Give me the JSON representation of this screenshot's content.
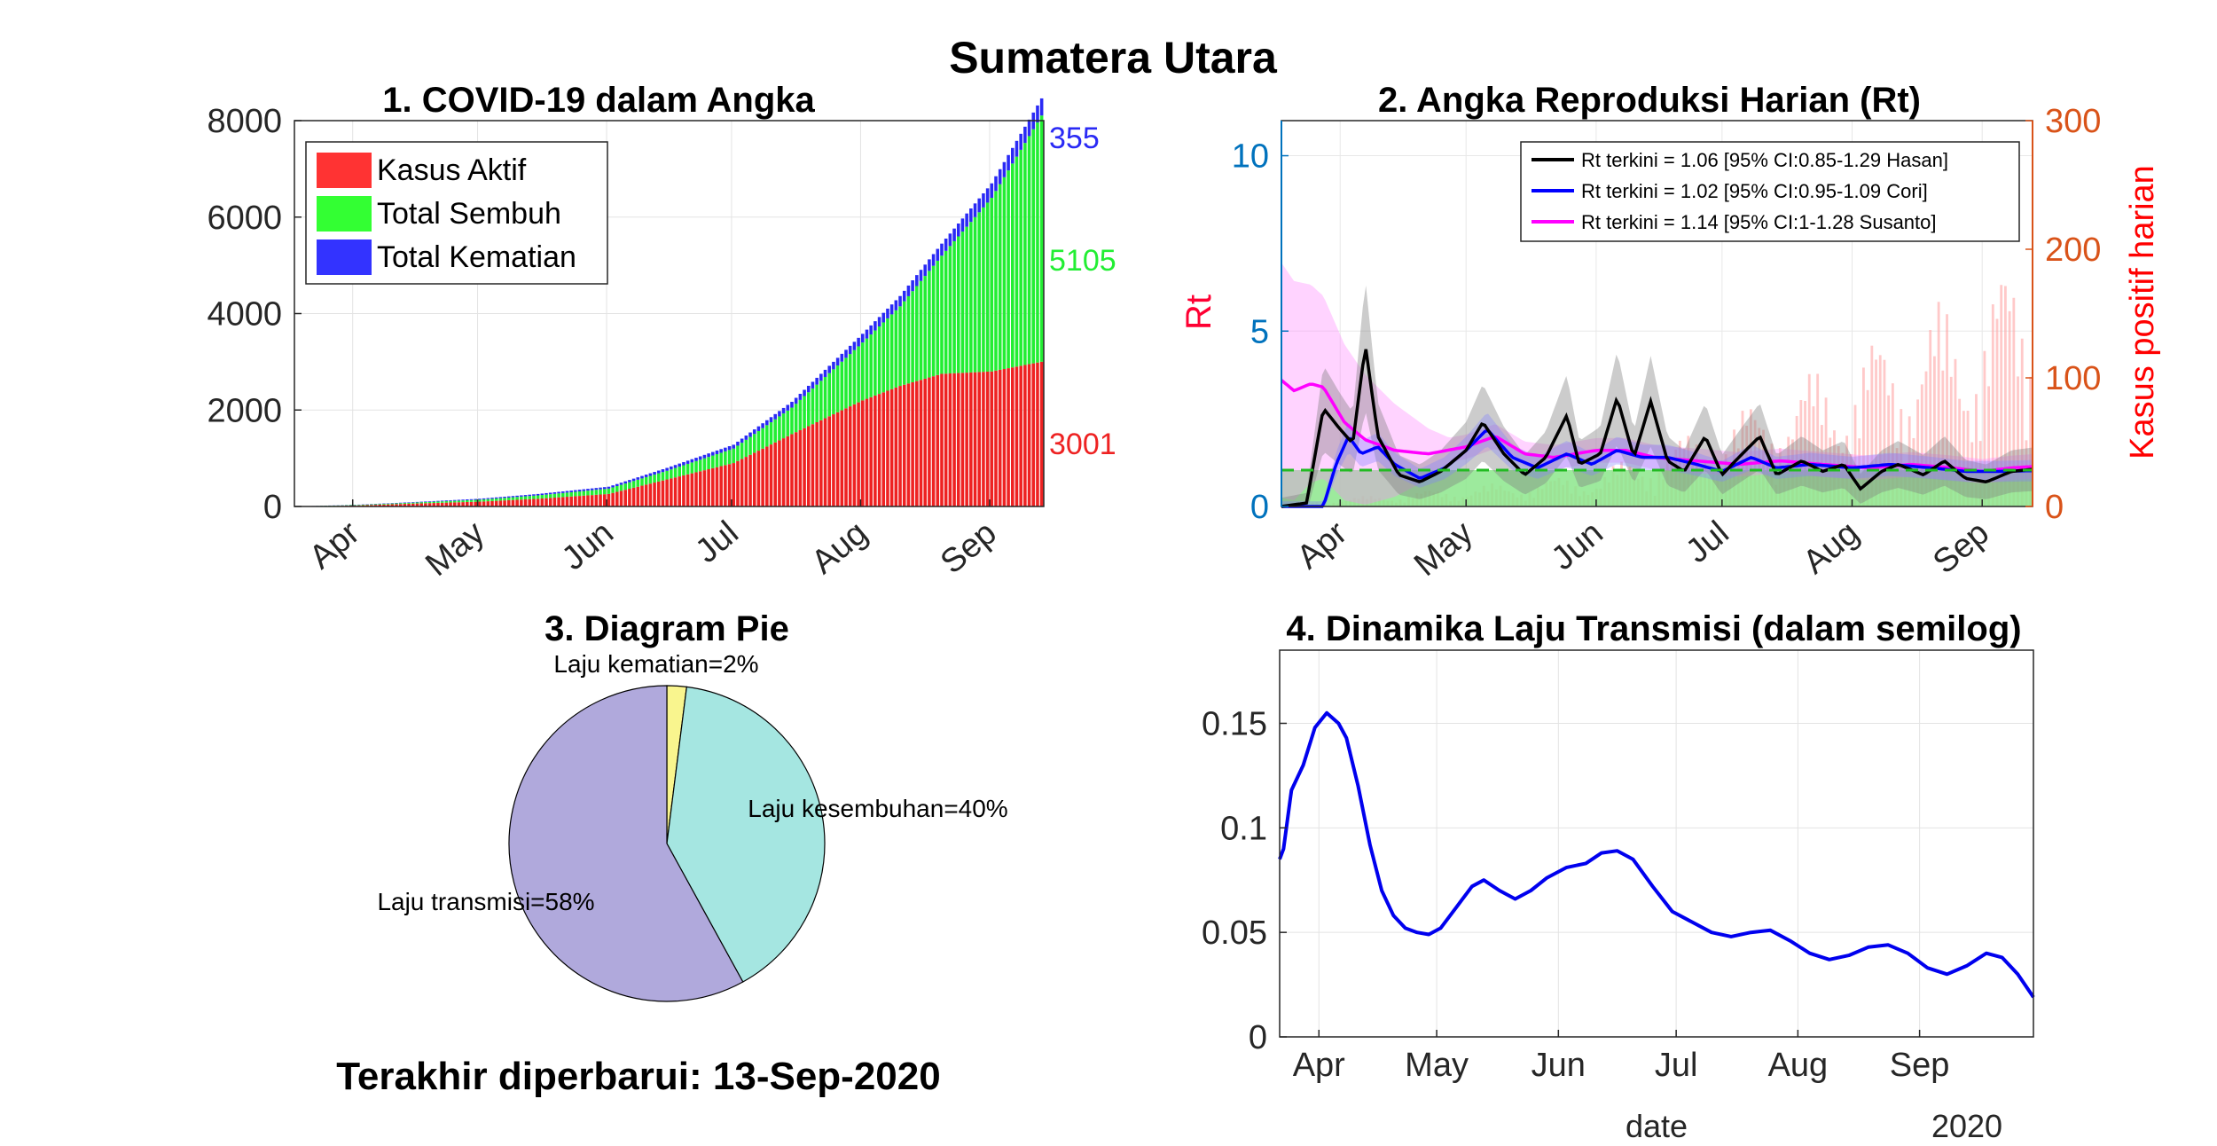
{
  "page": {
    "title": "Sumatera Utara",
    "updated": "Terakhir diperbarui: 13-Sep-2020"
  },
  "colors": {
    "active": "#ee2222",
    "recovered": "#22ee33",
    "deaths": "#2a2af5",
    "rt_hasan": "#000000",
    "rt_cori": "#0000ff",
    "rt_susanto": "#ff00ff",
    "daily_cases": "#ff9c9c",
    "threshold": "#22bb22",
    "transmission": "#0000ee",
    "pie_transmission": "#b0a9dc",
    "pie_recovery": "#a5e6e1",
    "pie_death": "#f9f58e",
    "left_axis_blue": "#0072bd",
    "right_axis_orange": "#d95319",
    "rt_label": "#ff0033",
    "cases_label": "#ff0000"
  },
  "chart_data": [
    {
      "type": "bar",
      "stacked": true,
      "title": "1. COVID-19 dalam Angka",
      "x_start": "2020-03-18",
      "x_end": "2020-09-13",
      "x_ticks": [
        "Apr",
        "May",
        "Jun",
        "Jul",
        "Aug",
        "Sep"
      ],
      "ylim": [
        0,
        8000
      ],
      "y_ticks": [
        "0",
        "2000",
        "4000",
        "6000",
        "8000"
      ],
      "legend": [
        "Kasus Aktif",
        "Total Sembuh",
        "Total Kematian"
      ],
      "legend_position": "top-left",
      "grid": true,
      "end_labels": {
        "deaths": "355",
        "recovered": "5105",
        "active": "3001"
      },
      "series": [
        {
          "name": "Kasus Aktif",
          "key": "active",
          "anchors": [
            [
              "2020-03-18",
              0
            ],
            [
              "2020-04-01",
              20
            ],
            [
              "2020-04-15",
              60
            ],
            [
              "2020-05-01",
              100
            ],
            [
              "2020-05-15",
              160
            ],
            [
              "2020-06-01",
              260
            ],
            [
              "2020-06-15",
              560
            ],
            [
              "2020-07-01",
              900
            ],
            [
              "2020-07-15",
              1500
            ],
            [
              "2020-08-01",
              2200
            ],
            [
              "2020-08-10",
              2500
            ],
            [
              "2020-08-20",
              2750
            ],
            [
              "2020-09-01",
              2800
            ],
            [
              "2020-09-13",
              3001
            ]
          ]
        },
        {
          "name": "Total Sembuh",
          "key": "recovered",
          "anchors": [
            [
              "2020-03-18",
              0
            ],
            [
              "2020-04-15",
              20
            ],
            [
              "2020-05-01",
              40
            ],
            [
              "2020-05-15",
              70
            ],
            [
              "2020-06-01",
              110
            ],
            [
              "2020-06-15",
              180
            ],
            [
              "2020-07-01",
              300
            ],
            [
              "2020-07-15",
              550
            ],
            [
              "2020-08-01",
              1200
            ],
            [
              "2020-08-10",
              1650
            ],
            [
              "2020-08-20",
              2450
            ],
            [
              "2020-09-01",
              3600
            ],
            [
              "2020-09-13",
              5105
            ]
          ]
        },
        {
          "name": "Total Kematian",
          "key": "deaths",
          "anchors": [
            [
              "2020-03-18",
              0
            ],
            [
              "2020-04-15",
              10
            ],
            [
              "2020-05-01",
              20
            ],
            [
              "2020-06-01",
              40
            ],
            [
              "2020-06-15",
              60
            ],
            [
              "2020-07-01",
              80
            ],
            [
              "2020-07-15",
              120
            ],
            [
              "2020-08-01",
              180
            ],
            [
              "2020-08-20",
              250
            ],
            [
              "2020-09-01",
              300
            ],
            [
              "2020-09-13",
              355
            ]
          ]
        }
      ]
    },
    {
      "type": "line",
      "title": "2. Angka Reproduksi Harian (Rt)",
      "x_start": "2020-03-18",
      "x_end": "2020-09-13",
      "x_ticks": [
        "Apr",
        "May",
        "Jun",
        "Jul",
        "Aug",
        "Sep"
      ],
      "ylabel": "Rt",
      "ylim": [
        0,
        11
      ],
      "y_ticks": [
        "0",
        "5",
        "10"
      ],
      "ylabel_right": "Kasus positif harian",
      "ylim_right": [
        0,
        300
      ],
      "y_ticks_right": [
        "0",
        "100",
        "200",
        "300"
      ],
      "threshold": 1,
      "legend_position": "top-right",
      "legend": [
        "Rt terkini = 1.06 [95% CI:0.85-1.29 Hasan]",
        "Rt terkini = 1.02 [95% CI:0.95-1.09 Cori]",
        "Rt terkini = 1.14 [95% CI:1-1.28 Susanto]"
      ],
      "series": [
        {
          "name": "Hasan",
          "key": "rt_hasan",
          "anchors": [
            [
              "2020-03-18",
              0.0
            ],
            [
              "2020-03-24",
              0.1
            ],
            [
              "2020-03-28",
              2.8
            ],
            [
              "2020-04-01",
              2.2
            ],
            [
              "2020-04-04",
              1.8
            ],
            [
              "2020-04-07",
              4.6
            ],
            [
              "2020-04-10",
              2.0
            ],
            [
              "2020-04-15",
              0.9
            ],
            [
              "2020-04-20",
              0.7
            ],
            [
              "2020-04-25",
              1.0
            ],
            [
              "2020-05-01",
              1.6
            ],
            [
              "2020-05-05",
              2.4
            ],
            [
              "2020-05-10",
              1.5
            ],
            [
              "2020-05-15",
              0.9
            ],
            [
              "2020-05-20",
              1.4
            ],
            [
              "2020-05-25",
              2.6
            ],
            [
              "2020-05-28",
              1.2
            ],
            [
              "2020-06-02",
              1.5
            ],
            [
              "2020-06-06",
              3.1
            ],
            [
              "2020-06-10",
              1.4
            ],
            [
              "2020-06-14",
              3.0
            ],
            [
              "2020-06-18",
              1.3
            ],
            [
              "2020-06-22",
              1.0
            ],
            [
              "2020-06-27",
              2.0
            ],
            [
              "2020-07-01",
              0.9
            ],
            [
              "2020-07-05",
              1.4
            ],
            [
              "2020-07-10",
              2.0
            ],
            [
              "2020-07-14",
              0.9
            ],
            [
              "2020-07-20",
              1.3
            ],
            [
              "2020-07-25",
              1.0
            ],
            [
              "2020-07-30",
              1.2
            ],
            [
              "2020-08-03",
              0.5
            ],
            [
              "2020-08-08",
              1.0
            ],
            [
              "2020-08-12",
              1.2
            ],
            [
              "2020-08-18",
              0.9
            ],
            [
              "2020-08-23",
              1.3
            ],
            [
              "2020-08-28",
              0.8
            ],
            [
              "2020-09-02",
              0.7
            ],
            [
              "2020-09-08",
              1.0
            ],
            [
              "2020-09-13",
              1.06
            ]
          ]
        },
        {
          "name": "Cori",
          "key": "rt_cori",
          "anchors": [
            [
              "2020-03-18",
              0.0
            ],
            [
              "2020-03-28",
              0.0
            ],
            [
              "2020-03-31",
              1.2
            ],
            [
              "2020-04-03",
              2.0
            ],
            [
              "2020-04-06",
              1.5
            ],
            [
              "2020-04-10",
              1.7
            ],
            [
              "2020-04-14",
              1.2
            ],
            [
              "2020-04-20",
              0.8
            ],
            [
              "2020-04-26",
              1.1
            ],
            [
              "2020-05-01",
              1.6
            ],
            [
              "2020-05-06",
              2.2
            ],
            [
              "2020-05-12",
              1.4
            ],
            [
              "2020-05-18",
              1.1
            ],
            [
              "2020-05-25",
              1.5
            ],
            [
              "2020-05-31",
              1.2
            ],
            [
              "2020-06-06",
              1.6
            ],
            [
              "2020-06-12",
              1.4
            ],
            [
              "2020-06-18",
              1.4
            ],
            [
              "2020-06-25",
              1.2
            ],
            [
              "2020-07-01",
              1.0
            ],
            [
              "2020-07-08",
              1.4
            ],
            [
              "2020-07-14",
              1.1
            ],
            [
              "2020-07-22",
              1.2
            ],
            [
              "2020-08-01",
              1.1
            ],
            [
              "2020-08-10",
              1.2
            ],
            [
              "2020-08-20",
              1.1
            ],
            [
              "2020-08-28",
              1.0
            ],
            [
              "2020-09-05",
              1.0
            ],
            [
              "2020-09-13",
              1.02
            ]
          ]
        },
        {
          "name": "Susanto",
          "key": "rt_susanto",
          "anchors": [
            [
              "2020-03-18",
              3.6
            ],
            [
              "2020-03-21",
              3.3
            ],
            [
              "2020-03-25",
              3.5
            ],
            [
              "2020-03-28",
              3.4
            ],
            [
              "2020-04-02",
              2.4
            ],
            [
              "2020-04-07",
              1.9
            ],
            [
              "2020-04-14",
              1.6
            ],
            [
              "2020-04-22",
              1.5
            ],
            [
              "2020-05-01",
              1.7
            ],
            [
              "2020-05-08",
              2.0
            ],
            [
              "2020-05-15",
              1.5
            ],
            [
              "2020-05-22",
              1.4
            ],
            [
              "2020-06-01",
              1.6
            ],
            [
              "2020-06-08",
              1.6
            ],
            [
              "2020-06-15",
              1.4
            ],
            [
              "2020-06-25",
              1.3
            ],
            [
              "2020-07-05",
              1.2
            ],
            [
              "2020-07-15",
              1.3
            ],
            [
              "2020-07-25",
              1.2
            ],
            [
              "2020-08-05",
              1.1
            ],
            [
              "2020-08-15",
              1.2
            ],
            [
              "2020-08-25",
              1.1
            ],
            [
              "2020-09-01",
              1.0
            ],
            [
              "2020-09-08",
              1.1
            ],
            [
              "2020-09-13",
              1.14
            ]
          ]
        },
        {
          "name": "Kasus positif harian",
          "key": "daily_cases",
          "axis": "right",
          "anchors": [
            [
              "2020-03-18",
              2
            ],
            [
              "2020-04-01",
              5
            ],
            [
              "2020-04-15",
              8
            ],
            [
              "2020-05-01",
              12
            ],
            [
              "2020-05-15",
              15
            ],
            [
              "2020-06-01",
              20
            ],
            [
              "2020-06-15",
              35
            ],
            [
              "2020-07-01",
              50
            ],
            [
              "2020-07-15",
              70
            ],
            [
              "2020-08-01",
              90
            ],
            [
              "2020-08-15",
              110
            ],
            [
              "2020-09-01",
              130
            ],
            [
              "2020-09-13",
              150
            ]
          ]
        }
      ]
    },
    {
      "type": "pie",
      "title": "3. Diagram Pie",
      "slices": [
        {
          "label": "Laju kematian=2%",
          "value": 2,
          "key": "pie_death"
        },
        {
          "label": "Laju kesembuhan=40%",
          "value": 40,
          "key": "pie_recovery"
        },
        {
          "label": "Laju transmisi=58%",
          "value": 58,
          "key": "pie_transmission"
        }
      ]
    },
    {
      "type": "line",
      "title": "4. Dinamika Laju Transmisi (dalam semilog)",
      "x_start": "2020-03-22",
      "x_end": "2020-09-13",
      "x_ticks": [
        "Apr",
        "May",
        "Jun",
        "Jul",
        "Aug",
        "Sep"
      ],
      "xlabel": "date",
      "x_year": "2020",
      "ylim": [
        0,
        0.185
      ],
      "y_ticks": [
        "0",
        "0.05",
        "0.1",
        "0.15"
      ],
      "grid": true,
      "series": [
        {
          "name": "",
          "key": "transmission",
          "anchors": [
            [
              "2020-03-22",
              0.085
            ],
            [
              "2020-03-23",
              0.09
            ],
            [
              "2020-03-25",
              0.118
            ],
            [
              "2020-03-28",
              0.13
            ],
            [
              "2020-03-31",
              0.148
            ],
            [
              "2020-04-03",
              0.155
            ],
            [
              "2020-04-06",
              0.15
            ],
            [
              "2020-04-08",
              0.143
            ],
            [
              "2020-04-11",
              0.12
            ],
            [
              "2020-04-14",
              0.092
            ],
            [
              "2020-04-17",
              0.07
            ],
            [
              "2020-04-20",
              0.058
            ],
            [
              "2020-04-23",
              0.052
            ],
            [
              "2020-04-26",
              0.05
            ],
            [
              "2020-04-29",
              0.049
            ],
            [
              "2020-05-02",
              0.052
            ],
            [
              "2020-05-06",
              0.062
            ],
            [
              "2020-05-10",
              0.072
            ],
            [
              "2020-05-13",
              0.075
            ],
            [
              "2020-05-17",
              0.07
            ],
            [
              "2020-05-21",
              0.066
            ],
            [
              "2020-05-25",
              0.07
            ],
            [
              "2020-05-29",
              0.076
            ],
            [
              "2020-06-03",
              0.081
            ],
            [
              "2020-06-08",
              0.083
            ],
            [
              "2020-06-12",
              0.088
            ],
            [
              "2020-06-16",
              0.089
            ],
            [
              "2020-06-20",
              0.085
            ],
            [
              "2020-06-25",
              0.072
            ],
            [
              "2020-06-30",
              0.06
            ],
            [
              "2020-07-05",
              0.055
            ],
            [
              "2020-07-10",
              0.05
            ],
            [
              "2020-07-15",
              0.048
            ],
            [
              "2020-07-20",
              0.05
            ],
            [
              "2020-07-25",
              0.051
            ],
            [
              "2020-07-30",
              0.046
            ],
            [
              "2020-08-04",
              0.04
            ],
            [
              "2020-08-09",
              0.037
            ],
            [
              "2020-08-14",
              0.039
            ],
            [
              "2020-08-19",
              0.043
            ],
            [
              "2020-08-24",
              0.044
            ],
            [
              "2020-08-29",
              0.04
            ],
            [
              "2020-09-03",
              0.033
            ],
            [
              "2020-09-08",
              0.03
            ],
            [
              "2020-09-13",
              0.034
            ],
            [
              "2020-09-18",
              0.04
            ],
            [
              "2020-09-22",
              0.038
            ],
            [
              "2020-09-26",
              0.03
            ],
            [
              "2020-09-30",
              0.019
            ]
          ]
        }
      ]
    }
  ]
}
